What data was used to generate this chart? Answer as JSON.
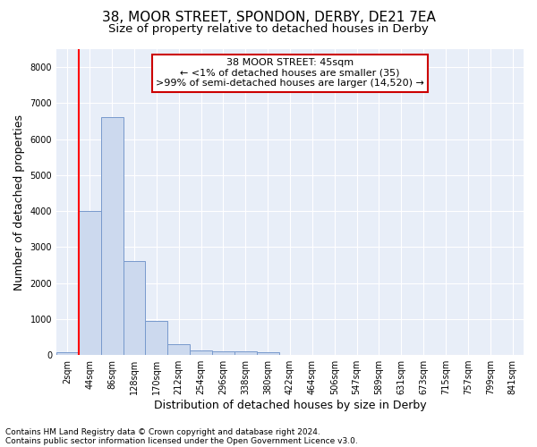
{
  "title_line1": "38, MOOR STREET, SPONDON, DERBY, DE21 7EA",
  "title_line2": "Size of property relative to detached houses in Derby",
  "xlabel": "Distribution of detached houses by size in Derby",
  "ylabel": "Number of detached properties",
  "bar_color": "#ccd9ee",
  "bar_edge_color": "#7799cc",
  "background_color": "#e8eef8",
  "grid_color": "#ffffff",
  "annotation_box_color": "#cc0000",
  "categories": [
    "2sqm",
    "44sqm",
    "86sqm",
    "128sqm",
    "170sqm",
    "212sqm",
    "254sqm",
    "296sqm",
    "338sqm",
    "380sqm",
    "422sqm",
    "464sqm",
    "506sqm",
    "547sqm",
    "589sqm",
    "631sqm",
    "673sqm",
    "715sqm",
    "757sqm",
    "799sqm",
    "841sqm"
  ],
  "values": [
    80,
    4000,
    6600,
    2600,
    950,
    310,
    130,
    110,
    90,
    80,
    0,
    0,
    0,
    0,
    0,
    0,
    0,
    0,
    0,
    0,
    0
  ],
  "red_line_x": 0.5,
  "ylim": [
    0,
    8500
  ],
  "yticks": [
    0,
    1000,
    2000,
    3000,
    4000,
    5000,
    6000,
    7000,
    8000
  ],
  "annotation_title": "38 MOOR STREET: 45sqm",
  "annotation_line2": "← <1% of detached houses are smaller (35)",
  "annotation_line3": ">99% of semi-detached houses are larger (14,520) →",
  "footnote1": "Contains HM Land Registry data © Crown copyright and database right 2024.",
  "footnote2": "Contains public sector information licensed under the Open Government Licence v3.0.",
  "title_fontsize": 11,
  "subtitle_fontsize": 9.5,
  "axis_label_fontsize": 9,
  "tick_fontsize": 7,
  "annotation_fontsize": 8,
  "footnote_fontsize": 6.5
}
